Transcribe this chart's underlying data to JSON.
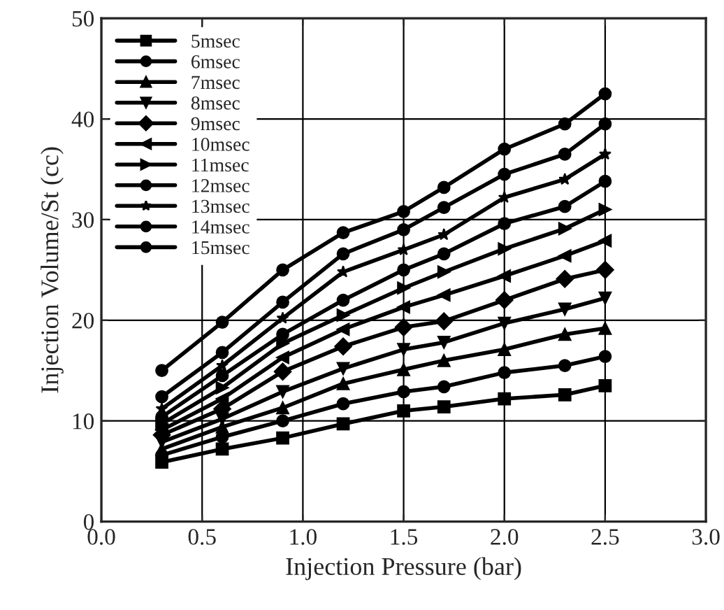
{
  "chart_data": {
    "type": "line",
    "xlabel": "Injection Pressure (bar)",
    "ylabel": "Injection Volume/St (cc)",
    "x": [
      0.3,
      0.6,
      0.9,
      1.2,
      1.5,
      1.7,
      2.0,
      2.3,
      2.5
    ],
    "xlim": [
      0,
      3
    ],
    "xticks": [
      {
        "value": 0,
        "label": "0.0"
      },
      0.5,
      {
        "value": 1,
        "label": "1.0"
      },
      1.5,
      {
        "value": 2,
        "label": "2.0"
      },
      2.5,
      {
        "value": 3,
        "label": "3.0"
      }
    ],
    "ylim": [
      0,
      50
    ],
    "yticks": [
      0,
      10,
      20,
      30,
      40,
      50
    ],
    "grid": true,
    "legend": "top left",
    "line_style": "solid",
    "series": [
      {
        "name": "5msec",
        "color": "#000000",
        "marker": "square",
        "values": [
          5.9,
          7.2,
          8.3,
          9.7,
          11.0,
          11.4,
          12.2,
          12.6,
          13.5
        ]
      },
      {
        "name": "6msec",
        "color": "#000000",
        "marker": "circle",
        "values": [
          6.6,
          8.4,
          10.0,
          11.7,
          12.9,
          13.4,
          14.8,
          15.5,
          16.4
        ]
      },
      {
        "name": "7msec",
        "color": "#000000",
        "marker": "triangle",
        "values": [
          7.2,
          9.4,
          11.3,
          13.7,
          15.1,
          16.0,
          17.1,
          18.6,
          19.2
        ]
      },
      {
        "name": "8msec",
        "color": "#000000",
        "marker": "triangle_down",
        "values": [
          7.9,
          10.2,
          12.9,
          15.2,
          17.1,
          17.8,
          19.7,
          21.1,
          22.2
        ]
      },
      {
        "name": "9msec",
        "color": "#000000",
        "marker": "diamond",
        "values": [
          8.6,
          11.2,
          14.9,
          17.4,
          19.3,
          19.9,
          22.0,
          24.1,
          25.0
        ]
      },
      {
        "name": "10msec",
        "color": "#000000",
        "marker": "triangle_left",
        "values": [
          9.1,
          12.2,
          16.3,
          19.1,
          21.3,
          22.5,
          24.4,
          26.4,
          27.9
        ]
      },
      {
        "name": "11msec",
        "color": "#000000",
        "marker": "triangle_right",
        "values": [
          9.7,
          13.3,
          17.7,
          20.5,
          23.2,
          24.8,
          27.1,
          29.1,
          31.0
        ]
      },
      {
        "name": "12msec",
        "color": "#000000",
        "marker": "circle",
        "values": [
          10.4,
          14.5,
          18.6,
          22.0,
          25.0,
          26.6,
          29.6,
          31.3,
          33.8
        ]
      },
      {
        "name": "13msec",
        "color": "#000000",
        "marker": "star",
        "values": [
          11.2,
          15.5,
          20.2,
          24.8,
          27.0,
          28.5,
          32.2,
          34.0,
          36.5
        ]
      },
      {
        "name": "14msec",
        "color": "#000000",
        "marker": "circle",
        "values": [
          12.4,
          16.8,
          21.8,
          26.6,
          29.0,
          31.2,
          34.5,
          36.5,
          39.5
        ]
      },
      {
        "name": "15msec",
        "color": "#000000",
        "marker": "circle",
        "values": [
          15.0,
          19.8,
          25.0,
          28.7,
          30.8,
          33.2,
          37.0,
          39.5,
          42.5
        ]
      }
    ]
  }
}
